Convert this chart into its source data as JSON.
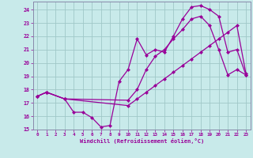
{
  "bg_color": "#c8eaea",
  "grid_color": "#a0c8c8",
  "line_color": "#990099",
  "spine_color": "#8888aa",
  "xlim": [
    -0.5,
    23.5
  ],
  "ylim": [
    15,
    24.6
  ],
  "yticks": [
    15,
    16,
    17,
    18,
    19,
    20,
    21,
    22,
    23,
    24
  ],
  "xticks": [
    0,
    1,
    2,
    3,
    4,
    5,
    6,
    7,
    8,
    9,
    10,
    11,
    12,
    13,
    14,
    15,
    16,
    17,
    18,
    19,
    20,
    21,
    22,
    23
  ],
  "xlabel": "Windchill (Refroidissement éolien,°C)",
  "line1_x": [
    0,
    1,
    3,
    4,
    5,
    6,
    7,
    8,
    9,
    10,
    11,
    12,
    13,
    14,
    15,
    16,
    17,
    18,
    19,
    20,
    21,
    22,
    23
  ],
  "line1_y": [
    17.5,
    17.8,
    17.3,
    16.3,
    16.3,
    15.9,
    15.2,
    15.3,
    18.6,
    19.5,
    21.8,
    20.6,
    21.0,
    20.8,
    22.0,
    23.3,
    24.2,
    24.3,
    24.0,
    23.5,
    20.8,
    21.0,
    19.1
  ],
  "line2_x": [
    0,
    1,
    3,
    10,
    11,
    12,
    13,
    14,
    15,
    16,
    17,
    18,
    19,
    20,
    21,
    22,
    23
  ],
  "line2_y": [
    17.5,
    17.8,
    17.3,
    17.2,
    18.0,
    19.5,
    20.5,
    21.0,
    21.8,
    22.5,
    23.3,
    23.5,
    22.8,
    21.0,
    19.1,
    19.5,
    19.1
  ],
  "line3_x": [
    0,
    1,
    3,
    10,
    11,
    12,
    13,
    14,
    15,
    16,
    17,
    18,
    19,
    20,
    21,
    22,
    23
  ],
  "line3_y": [
    17.5,
    17.8,
    17.3,
    16.8,
    17.3,
    17.8,
    18.3,
    18.8,
    19.3,
    19.8,
    20.3,
    20.8,
    21.3,
    21.8,
    22.3,
    22.8,
    19.2
  ]
}
